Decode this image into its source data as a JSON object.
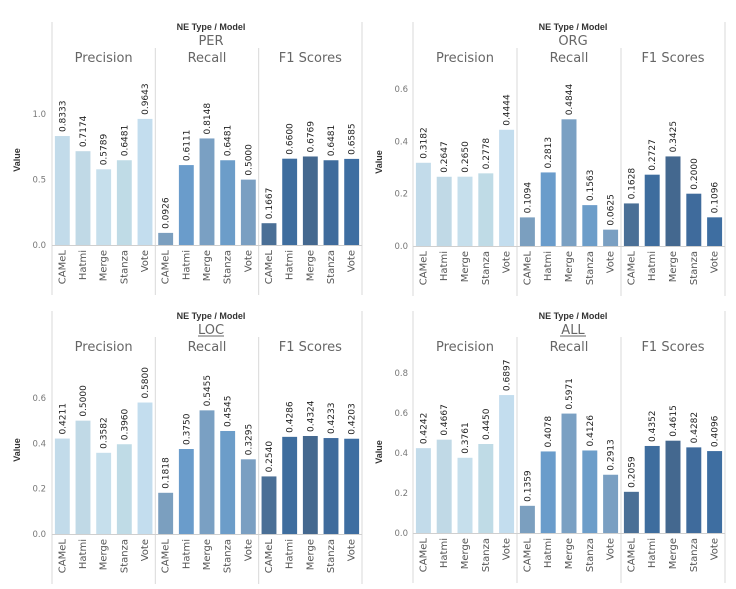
{
  "chart_data": [
    {
      "type": "bar",
      "title": "PER",
      "header": "NE Type / Model",
      "ylabel": "Value",
      "ylim": [
        0,
        1.3
      ],
      "yticks": [
        0.0,
        0.5,
        1.0
      ],
      "ytick_labels": [
        "0.0",
        "0.5",
        "1.0"
      ],
      "groups": [
        "Precision",
        "Recall",
        "F1 Scores"
      ],
      "categories": [
        "CAMeL",
        "Hatmi",
        "Merge",
        "Stanza",
        "Vote"
      ],
      "series": [
        {
          "name": "Precision",
          "values": [
            0.8333,
            0.7174,
            0.5789,
            0.6481,
            0.9643
          ]
        },
        {
          "name": "Recall",
          "values": [
            0.0926,
            0.6111,
            0.8148,
            0.6481,
            0.5
          ]
        },
        {
          "name": "F1 Scores",
          "values": [
            0.1667,
            0.66,
            0.6769,
            0.6481,
            0.6585
          ]
        }
      ]
    },
    {
      "type": "bar",
      "title": "ORG",
      "header": "NE Type / Model",
      "ylabel": "Value",
      "ylim": [
        0,
        0.65
      ],
      "yticks": [
        0.0,
        0.2,
        0.4,
        0.6
      ],
      "ytick_labels": [
        "0.0",
        "0.2",
        "0.4",
        "0.6"
      ],
      "groups": [
        "Precision",
        "Recall",
        "F1 Scores"
      ],
      "categories": [
        "CAMeL",
        "Hatmi",
        "Merge",
        "Stanza",
        "Vote"
      ],
      "series": [
        {
          "name": "Precision",
          "values": [
            0.3182,
            0.2647,
            0.265,
            0.2778,
            0.4444
          ]
        },
        {
          "name": "Recall",
          "values": [
            0.1094,
            0.2813,
            0.4844,
            0.1563,
            0.0625
          ]
        },
        {
          "name": "F1 Scores",
          "values": [
            0.1628,
            0.2727,
            0.3425,
            0.2,
            0.1096
          ]
        }
      ]
    },
    {
      "type": "bar",
      "title": "LOC",
      "header": "NE Type / Model",
      "ylabel": "Value",
      "ylim": [
        0,
        0.75
      ],
      "yticks": [
        0.0,
        0.2,
        0.4,
        0.6
      ],
      "ytick_labels": [
        "0.0",
        "0.2",
        "0.4",
        "0.6"
      ],
      "groups": [
        "Precision",
        "Recall",
        "F1 Scores"
      ],
      "categories": [
        "CAMeL",
        "Hatmi",
        "Merge",
        "Stanza",
        "Vote"
      ],
      "series": [
        {
          "name": "Precision",
          "values": [
            0.4211,
            0.5,
            0.3582,
            0.396,
            0.58
          ]
        },
        {
          "name": "Recall",
          "values": [
            0.1818,
            0.375,
            0.5455,
            0.4545,
            0.3295
          ]
        },
        {
          "name": "F1 Scores",
          "values": [
            0.254,
            0.4286,
            0.4324,
            0.4233,
            0.4203
          ]
        }
      ]
    },
    {
      "type": "bar",
      "title": "ALL",
      "header": "NE Type / Model",
      "ylabel": "Value",
      "ylim": [
        0,
        0.85
      ],
      "yticks": [
        0.0,
        0.2,
        0.4,
        0.6,
        0.8
      ],
      "ytick_labels": [
        "0.0",
        "0.2",
        "0.4",
        "0.6",
        "0.8"
      ],
      "groups": [
        "Precision",
        "Recall",
        "F1 Scores"
      ],
      "categories": [
        "CAMeL",
        "Hatmi",
        "Merge",
        "Stanza",
        "Vote"
      ],
      "series": [
        {
          "name": "Precision",
          "values": [
            0.4242,
            0.4667,
            0.3761,
            0.445,
            0.6897
          ]
        },
        {
          "name": "Recall",
          "values": [
            0.1359,
            0.4078,
            0.5971,
            0.4126,
            0.2913
          ]
        },
        {
          "name": "F1 Scores",
          "values": [
            0.2059,
            0.4352,
            0.4615,
            0.4282,
            0.4096
          ]
        }
      ]
    }
  ],
  "colors": {
    "precision": [
      "#c2dbea",
      "#c0d9e6",
      "#c6dfec",
      "#bfdbe6",
      "#c3ddee"
    ],
    "recall": [
      "#7b9fbf",
      "#6a9ccb",
      "#7aa0c3",
      "#6c9dc9",
      "#7a9fc2"
    ],
    "f1": [
      "#4a6f96",
      "#3e6d9e",
      "#44688f",
      "#3f6b9c",
      "#3e6ea1"
    ]
  }
}
